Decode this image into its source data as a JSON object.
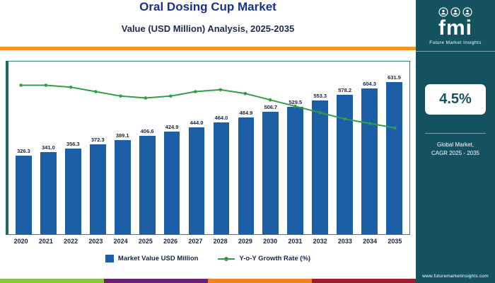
{
  "header": {
    "title": "Oral Dosing Cup Market",
    "subtitle": "Value (USD Million) Analysis, 2025-2035"
  },
  "sidebar": {
    "logo_text": "fmi",
    "logo_caption": "Future Market Insights",
    "stat_value": "4.5%",
    "stat_caption_line1": "Global Market,",
    "stat_caption_line2": "CAGR 2025 - 2035",
    "website": "www.futuremarketinsights.com"
  },
  "legend": [
    {
      "label": "Market Value USD Million",
      "type": "bar"
    },
    {
      "label": "Y-o-Y Growth Rate (%)",
      "type": "line"
    }
  ],
  "colors": {
    "title_blue": "#17338f",
    "bar_blue": "#1d5fa6",
    "line_green": "#2f9e44",
    "panel_teal": "#14525f",
    "orange_rule": "#f7941d",
    "frame_teal": "#2a7f6f",
    "stripe": [
      "#8dc63f",
      "#6d2077",
      "#f58220",
      "#9e1b32"
    ]
  },
  "chart_data": {
    "type": "bar",
    "title": "Oral Dosing Cup Market - Value (USD Million) Analysis, 2025-2035",
    "categories": [
      "2020",
      "2021",
      "2022",
      "2023",
      "2024",
      "2025",
      "2026",
      "2027",
      "2028",
      "2029",
      "2030",
      "2031",
      "2032",
      "2033",
      "2034",
      "2035"
    ],
    "series": [
      {
        "name": "Market Value USD Million",
        "type": "bar",
        "values": [
          326.3,
          341.0,
          356.3,
          372.3,
          389.1,
          406.6,
          424.9,
          444.0,
          464.0,
          484.9,
          506.7,
          529.5,
          553.3,
          578.2,
          604.3,
          631.5
        ]
      },
      {
        "name": "Y-o-Y Growth Rate (%)",
        "type": "line",
        "estimated_from_plot": true,
        "values": [
          4.55,
          4.55,
          4.52,
          4.45,
          4.38,
          4.35,
          4.38,
          4.45,
          4.48,
          4.42,
          4.32,
          4.22,
          4.12,
          4.02,
          3.95,
          3.88
        ]
      }
    ],
    "xlabel": "",
    "ylabel": "Value (USD Million)",
    "ylim": [
      0,
      660
    ],
    "grid": false,
    "legend_position": "bottom"
  }
}
